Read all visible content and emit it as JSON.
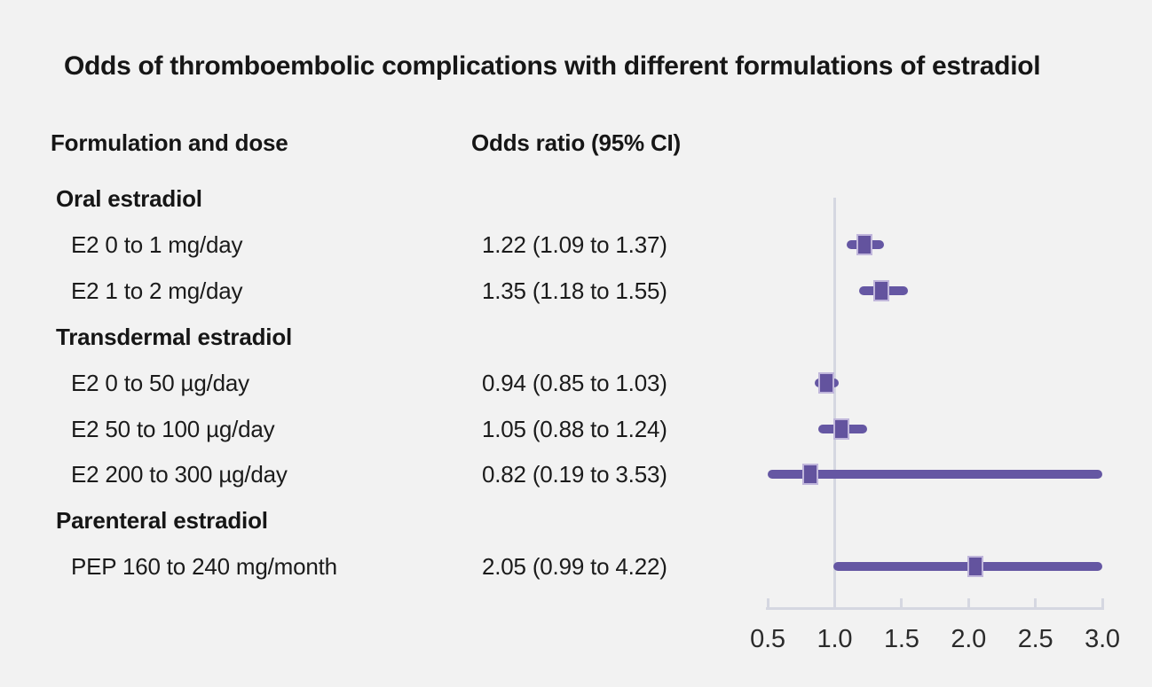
{
  "title": "Odds of thromboembolic complications with different formulations of estradiol",
  "columns": {
    "formulation": "Formulation and dose",
    "odds": "Odds ratio (95% CI)"
  },
  "colors": {
    "background": "#f2f2f2",
    "text": "#1b1b1b",
    "bar": "#6557a3",
    "square_fill": "#63539e",
    "square_border": "#c0b6db",
    "axis": "#d5d7e1"
  },
  "chart_data": {
    "type": "forest",
    "title": "Odds of thromboembolic complications with different formulations of estradiol",
    "x_axis": {
      "range": [
        0.5,
        3.0
      ],
      "tick_values": [
        0.5,
        1.0,
        1.5,
        2.0,
        2.5,
        3.0
      ],
      "tick_labels": [
        "0.5",
        "1.0",
        "1.5",
        "2.0",
        "2.5",
        "3.0"
      ],
      "reference_line": 1.0,
      "grid": false
    },
    "legend": null,
    "rows": [
      {
        "type": "section",
        "label": "Oral estradiol"
      },
      {
        "type": "item",
        "label": "E2 0 to 1 mg/day",
        "value_text": "1.22 (1.09 to 1.37)",
        "or": 1.22,
        "ci_low": 1.09,
        "ci_high": 1.37
      },
      {
        "type": "item",
        "label": "E2 1 to 2 mg/day",
        "value_text": "1.35 (1.18 to 1.55)",
        "or": 1.35,
        "ci_low": 1.18,
        "ci_high": 1.55
      },
      {
        "type": "section",
        "label": "Transdermal estradiol"
      },
      {
        "type": "item",
        "label": "E2 0 to 50 µg/day",
        "value_text": "0.94 (0.85 to 1.03)",
        "or": 0.94,
        "ci_low": 0.85,
        "ci_high": 1.03
      },
      {
        "type": "item",
        "label": "E2 50 to 100 µg/day",
        "value_text": "1.05 (0.88 to 1.24)",
        "or": 1.05,
        "ci_low": 0.88,
        "ci_high": 1.24
      },
      {
        "type": "item",
        "label": "E2 200 to 300 µg/day",
        "value_text": "0.82 (0.19 to 3.53)",
        "or": 0.82,
        "ci_low": 0.19,
        "ci_high": 3.53
      },
      {
        "type": "section",
        "label": "Parenteral estradiol"
      },
      {
        "type": "item",
        "label": "PEP 160 to 240 mg/month",
        "value_text": "2.05 (0.99 to 4.22)",
        "or": 2.05,
        "ci_low": 0.99,
        "ci_high": 4.22
      }
    ]
  }
}
